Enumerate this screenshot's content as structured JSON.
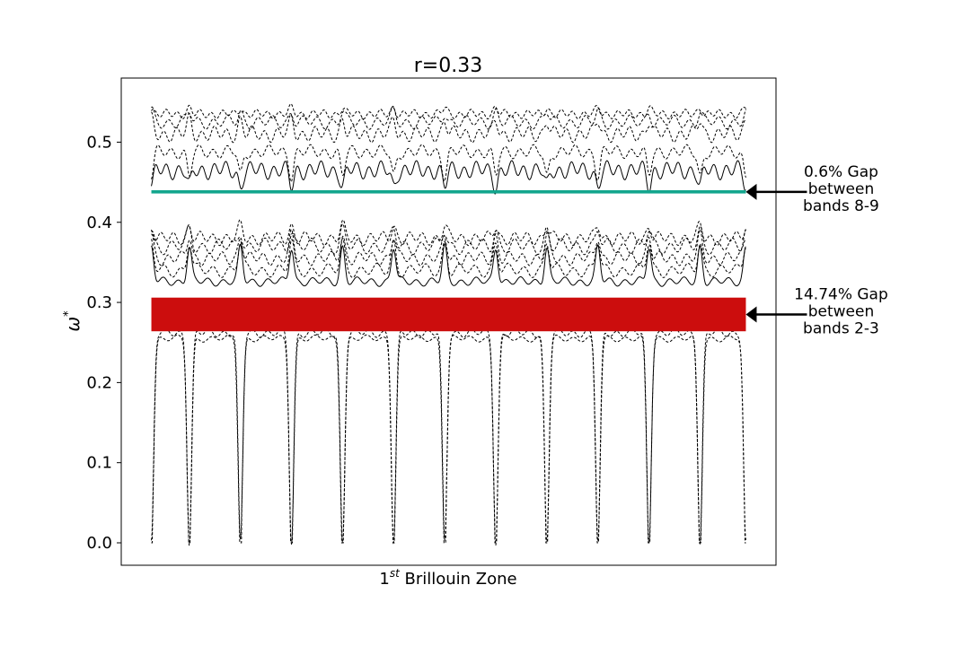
{
  "chart_data": {
    "type": "line",
    "title": "r=0.33",
    "xlabel_base": "1",
    "xlabel_sup": "st",
    "xlabel_rest": " Brillouin Zone",
    "ylabel_base": "ω",
    "ylabel_sup": "*",
    "ylim": [
      -0.028,
      0.58
    ],
    "xlim": [
      0,
      1
    ],
    "yticks": [
      {
        "value": 0.0,
        "label": "0.0"
      },
      {
        "value": 0.1,
        "label": "0.1"
      },
      {
        "value": 0.2,
        "label": "0.2"
      },
      {
        "value": 0.3,
        "label": "0.3"
      },
      {
        "value": 0.4,
        "label": "0.4"
      },
      {
        "value": 0.5,
        "label": "0.5"
      }
    ],
    "grid": false,
    "x_start": 0.046,
    "x_end": 0.954,
    "spike_positions": [
      0.046,
      0.104,
      0.182,
      0.26,
      0.338,
      0.416,
      0.494,
      0.572,
      0.65,
      0.728,
      0.806,
      0.884,
      0.954
    ],
    "bands": [
      {
        "band": 1,
        "base": 0.255,
        "amp": 0.003,
        "freq": 38,
        "dip": 0.255,
        "style": "dashed"
      },
      {
        "band": 2,
        "base": 0.262,
        "amp": 0.004,
        "freq": 45,
        "dip": 0.262,
        "style": "dashed"
      },
      {
        "band": 3,
        "base": 0.326,
        "amp": 0.004,
        "freq": 44,
        "peak": 0.085,
        "style": "solid"
      },
      {
        "band": 4,
        "base": 0.34,
        "amp": 0.006,
        "freq": 40,
        "peak": 0.07,
        "style": "dashed"
      },
      {
        "band": 5,
        "base": 0.355,
        "amp": 0.006,
        "freq": 48,
        "peak": 0.055,
        "style": "dashed"
      },
      {
        "band": 6,
        "base": 0.37,
        "amp": 0.007,
        "freq": 42,
        "peak": 0.04,
        "style": "dashed"
      },
      {
        "band": 7,
        "base": 0.38,
        "amp": 0.006,
        "freq": 50,
        "peak": 0.03,
        "style": "dashed"
      },
      {
        "band": 8,
        "base": 0.465,
        "amp": 0.008,
        "freq": 55,
        "dip": 0.02,
        "style": "solid"
      },
      {
        "band": 9,
        "base": 0.488,
        "amp": 0.006,
        "freq": 47,
        "dip": 0.03,
        "style": "dashed"
      },
      {
        "band": 10,
        "base": 0.51,
        "amp": 0.007,
        "freq": 52,
        "peak": 0.035,
        "style": "dashed"
      },
      {
        "band": 11,
        "base": 0.525,
        "amp": 0.006,
        "freq": 44,
        "peak": 0.025,
        "style": "dashed"
      },
      {
        "band": 12,
        "base": 0.535,
        "amp": 0.004,
        "freq": 58,
        "peak": 0.015,
        "style": "dashed"
      }
    ],
    "gaps": [
      {
        "name": "gap-bands-8-9",
        "y_low": 0.436,
        "y_high": 0.44,
        "color": "#12a58d",
        "label_lines": [
          "0.6% Gap",
          "between",
          "bands 8-9"
        ]
      },
      {
        "name": "gap-bands-2-3",
        "y_low": 0.264,
        "y_high": 0.306,
        "color": "#cc0d0d",
        "label_lines": [
          "14.74% Gap",
          "between",
          "bands 2-3"
        ]
      }
    ]
  }
}
